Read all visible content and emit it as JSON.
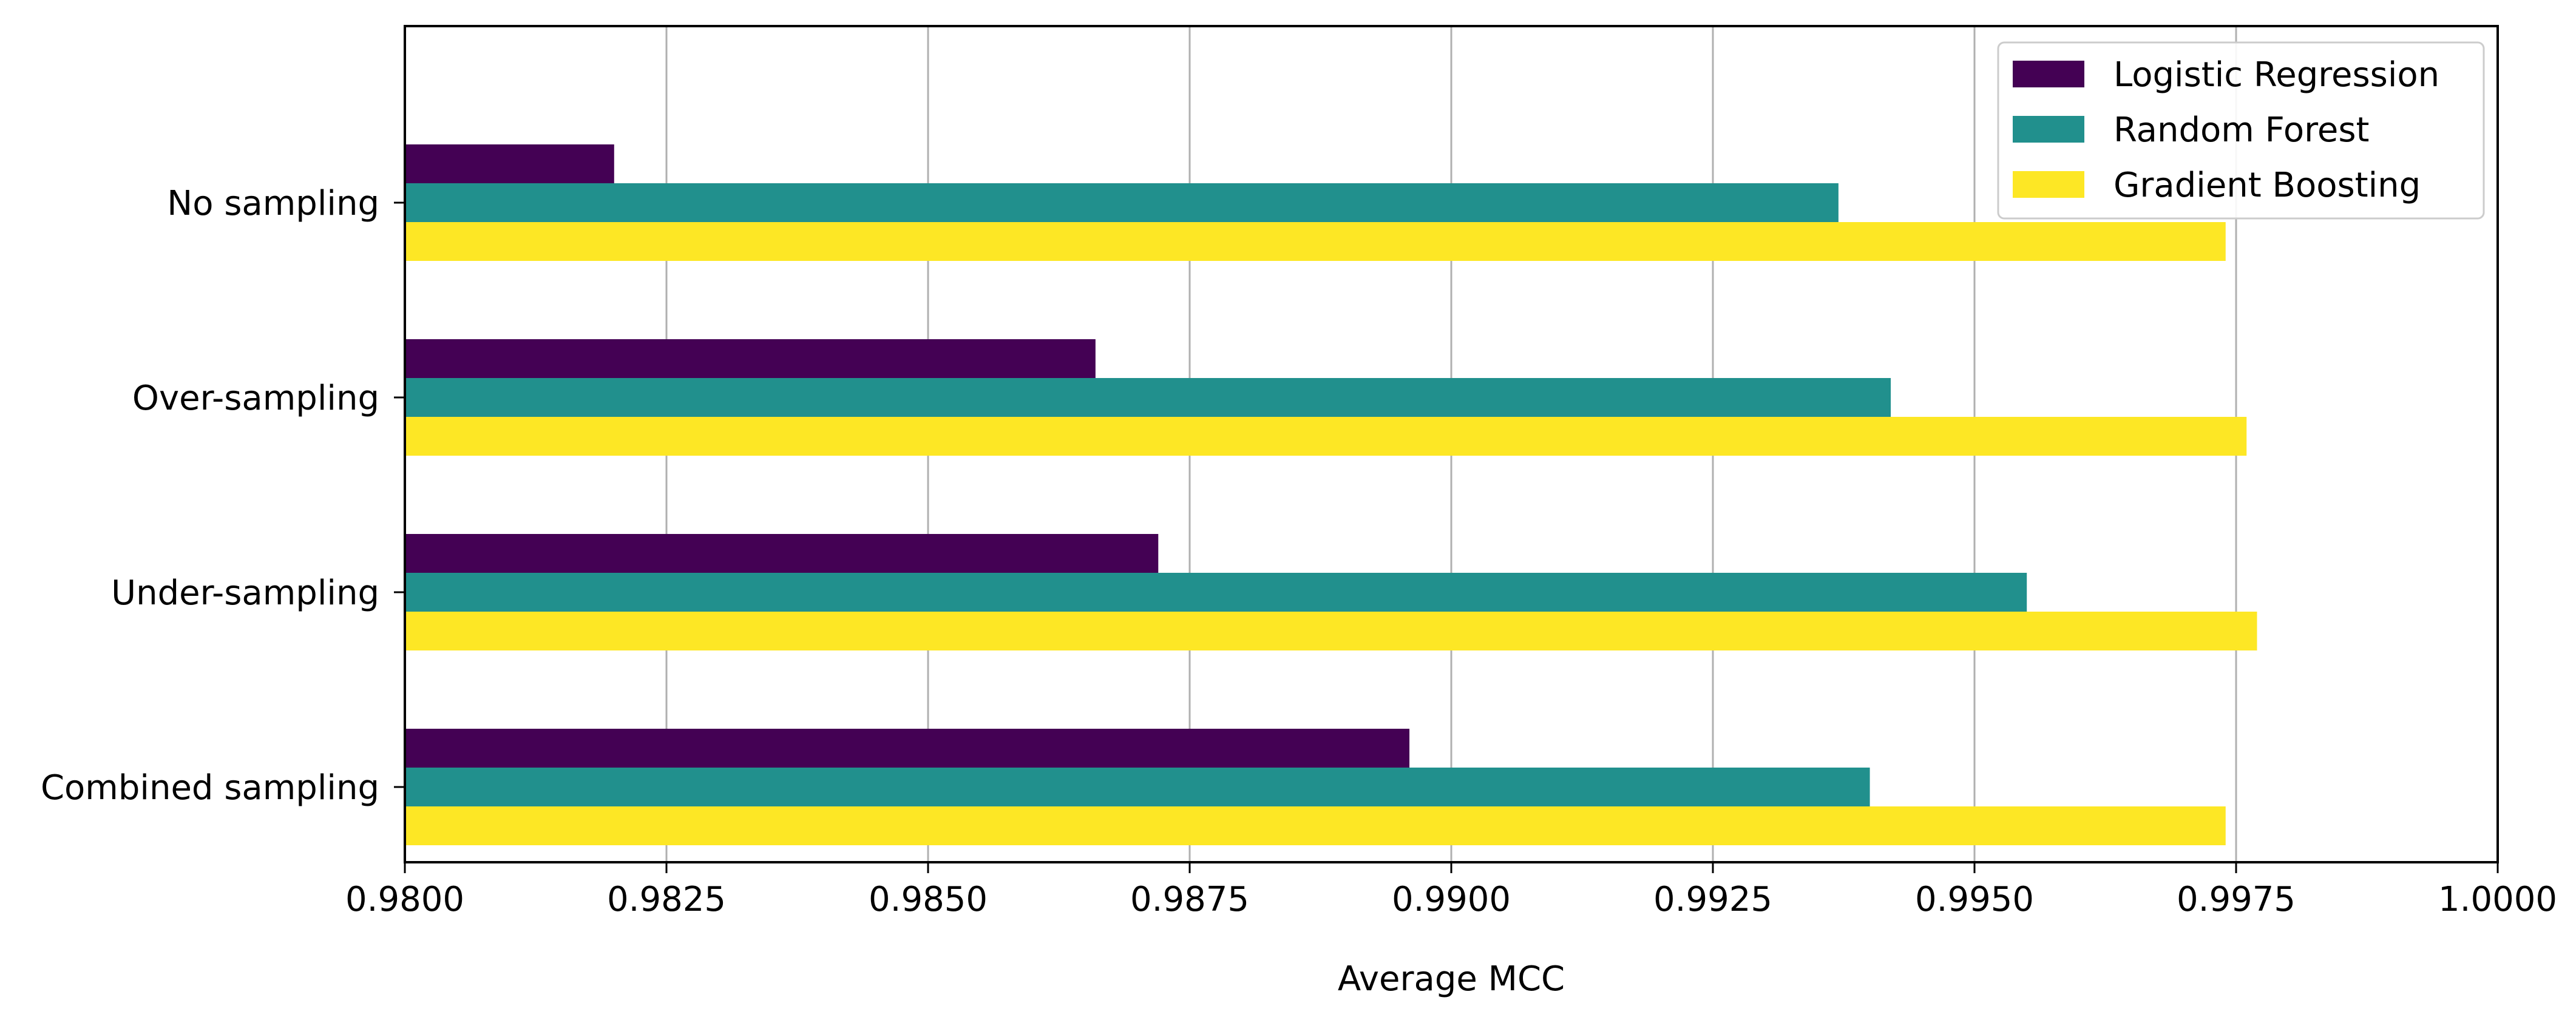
{
  "chart_data": {
    "type": "bar",
    "orientation": "horizontal",
    "title": "",
    "xlabel": "Average MCC",
    "ylabel": "",
    "xlim": [
      0.98,
      1.0
    ],
    "xticks": [
      0.98,
      0.9825,
      0.985,
      0.9875,
      0.99,
      0.9925,
      0.995,
      0.9975,
      1.0
    ],
    "xtick_labels": [
      "0.9800",
      "0.9825",
      "0.9850",
      "0.9875",
      "0.9900",
      "0.9925",
      "0.9950",
      "0.9975",
      "1.0000"
    ],
    "grid": "vertical",
    "legend_position": "top-right",
    "categories": [
      "No sampling",
      "Over-sampling",
      "Under-sampling",
      "Combined sampling"
    ],
    "series": [
      {
        "name": "Logistic Regression",
        "color": "#440154",
        "values": [
          0.982,
          0.9866,
          0.9872,
          0.9896
        ]
      },
      {
        "name": "Random Forest",
        "color": "#21908d",
        "values": [
          0.9937,
          0.9942,
          0.9955,
          0.994
        ]
      },
      {
        "name": "Gradient Boosting",
        "color": "#fde725",
        "values": [
          0.9974,
          0.9976,
          0.9977,
          0.9974
        ]
      }
    ]
  }
}
